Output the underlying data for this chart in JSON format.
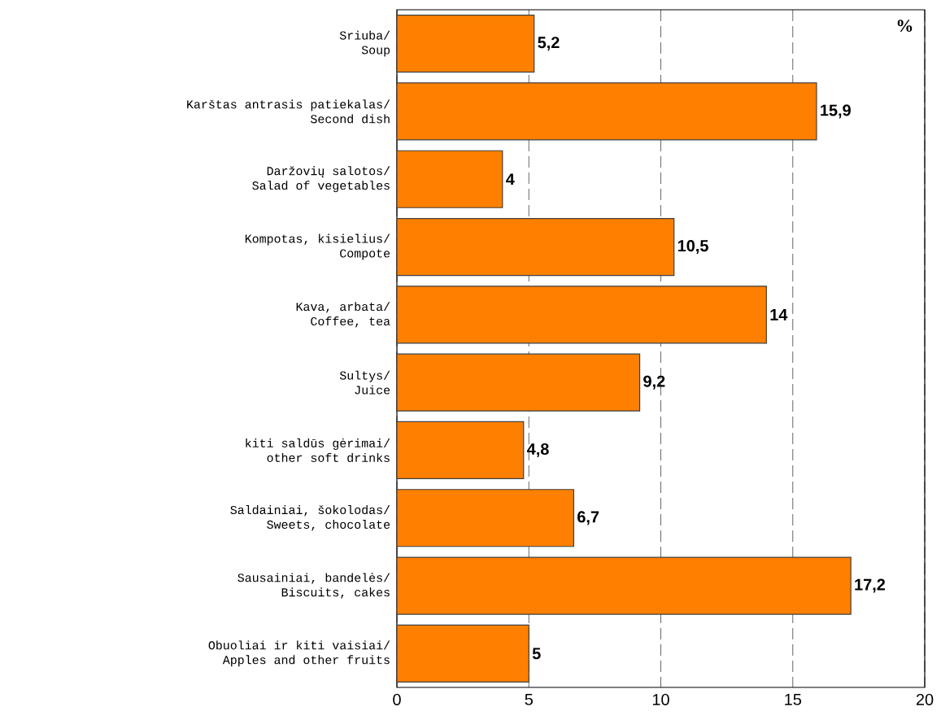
{
  "chart_data": {
    "type": "bar",
    "orientation": "horizontal",
    "categories": [
      "Sriuba/ Soup",
      "Karštas antrasis patiekalas/ Second dish",
      "Daržovių salotos/ Salad of vegetables",
      "Kompotas, kisielius/ Compote",
      "Kava, arbata/ Coffee, tea",
      "Sultys/ Juice",
      "kiti saldūs gėrimai/ other soft drinks",
      "Saldainiai, šokolodas/ Sweets, chocolate",
      "Sausainiai, bandelės/ Biscuits, cakes",
      "Obuoliai ir kiti vaisiai/ Apples and other fruits"
    ],
    "values": [
      5.2,
      15.9,
      4,
      10.5,
      14,
      9.2,
      4.8,
      6.7,
      17.2,
      5
    ],
    "value_labels": [
      "5,2",
      "15,9",
      "4",
      "10,5",
      "14",
      "9,2",
      "4,8",
      "6,7",
      "17,2",
      "5"
    ],
    "color": "#ff8000",
    "xlim": [
      0,
      20
    ],
    "xticks": [
      0,
      5,
      10,
      15,
      20
    ],
    "grid": "x",
    "tick_labels": "x",
    "annotations": [
      "%"
    ]
  }
}
